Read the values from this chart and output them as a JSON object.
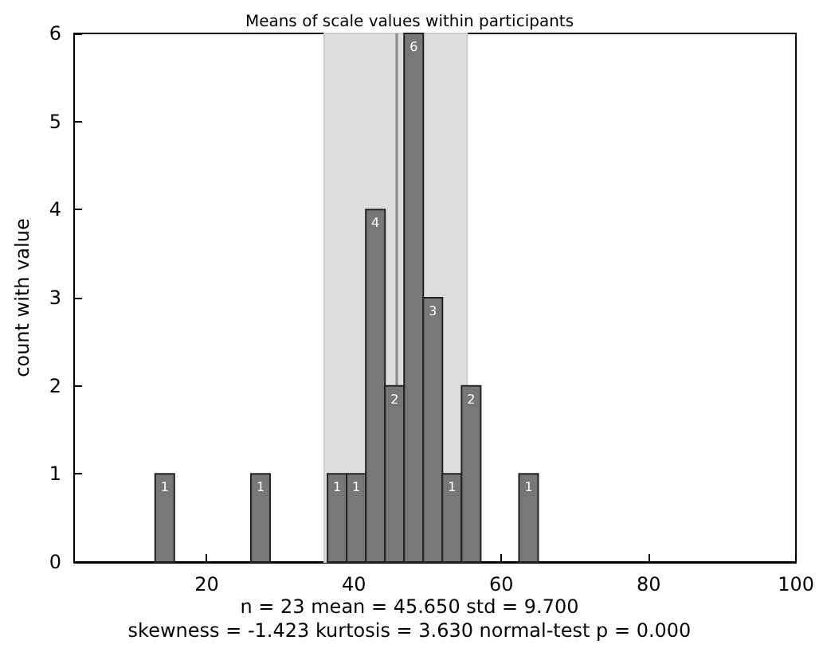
{
  "chart_data": {
    "type": "histogram",
    "title": "Means of scale values within participants",
    "ylabel": "count with value",
    "bins": [
      13.0,
      15.6,
      18.2,
      20.8,
      23.4,
      26.0,
      28.6,
      31.2,
      33.8,
      36.4,
      39.0,
      41.6,
      44.2,
      46.8,
      49.4,
      52.0,
      54.6,
      57.2,
      59.8,
      62.4,
      65.0,
      67.6,
      70.2,
      72.8,
      75.4,
      78.0,
      80.6,
      83.2,
      85.8,
      88.4,
      91.0
    ],
    "values": [
      1,
      0,
      0,
      0,
      0,
      1,
      0,
      0,
      0,
      1,
      1,
      4,
      2,
      6,
      3,
      1,
      2,
      0,
      0,
      1,
      0,
      0,
      0,
      0,
      0,
      0,
      0,
      0,
      0,
      0
    ],
    "value_labels": [
      "1",
      null,
      null,
      null,
      null,
      "1",
      null,
      null,
      null,
      "1",
      "1",
      "4",
      "2",
      "6",
      "3",
      "1",
      "2",
      null,
      null,
      "1",
      null,
      null,
      null,
      null,
      null,
      null,
      null,
      null,
      null,
      null
    ],
    "color": "#777777",
    "xlim": [
      2,
      100
    ],
    "xticks": [
      20,
      40,
      60,
      80,
      100
    ],
    "ylim": [
      0,
      6
    ],
    "yticks": [
      0,
      1,
      2,
      3,
      4,
      5,
      6
    ],
    "grid": false,
    "ref_lines": [
      {
        "axis": "x",
        "value": 45.65,
        "color": "#888888"
      }
    ],
    "bands": [
      {
        "axis": "x",
        "from": 35.95,
        "to": 55.35,
        "color": "#dddddd"
      }
    ],
    "annotations": [
      "n = 23 mean = 45.650 std = 9.700",
      "skewness = -1.423 kurtosis = 3.630 normal-test p = 0.000"
    ]
  }
}
